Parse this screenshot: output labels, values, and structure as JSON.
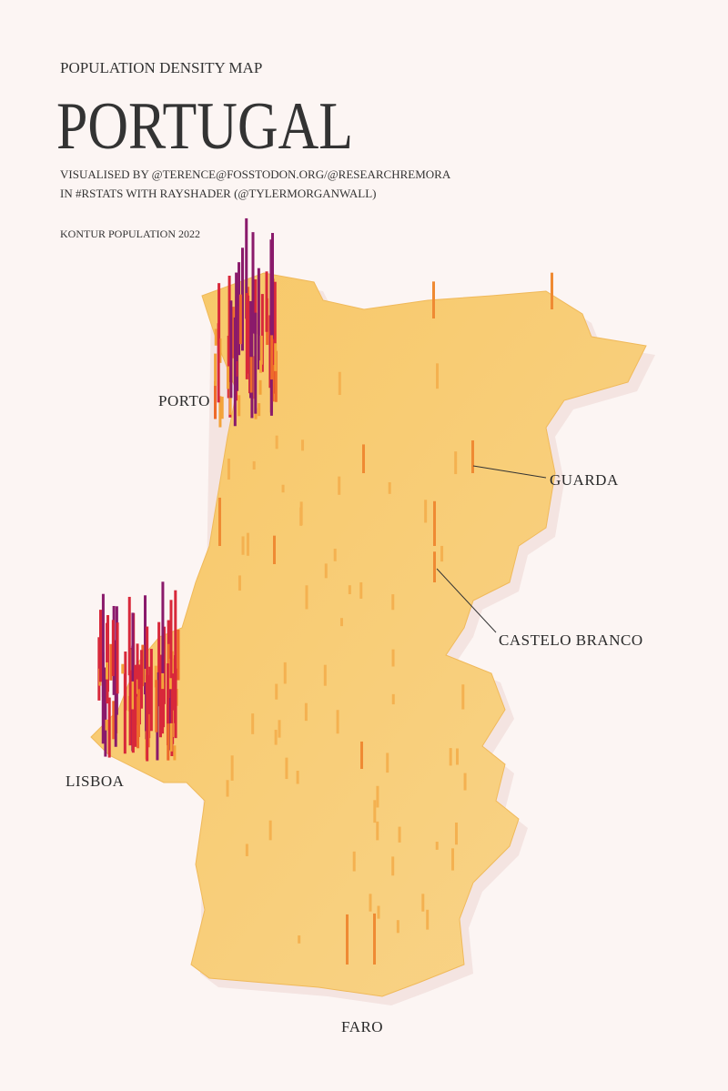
{
  "header": {
    "subtitle": "POPULATION DENSITY MAP",
    "title": "PORTUGAL",
    "credits": [
      "VISUALISED BY @TERENCE@FOSSTODON.ORG/@RESEARCHREMORA",
      "IN #RSTATS WITH RAYSHADER (@TYLERMORGANWALL)"
    ],
    "source": "KONTUR POPULATION 2022"
  },
  "labels": [
    "PORTO",
    "GUARDA",
    "CASTELO BRANCO",
    "LISBOA",
    "FARO"
  ]
}
